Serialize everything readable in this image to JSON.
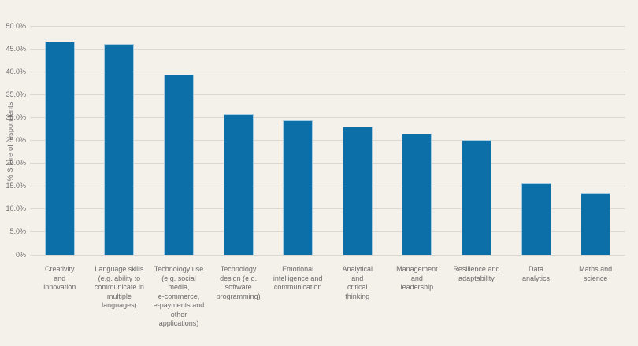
{
  "page": {
    "background_color": "#f4f1ea",
    "text_color": "#6e6e6e"
  },
  "chart_data": {
    "type": "bar",
    "title": "",
    "xlabel": "",
    "ylabel": "% Share of respondents",
    "categories": [
      "Creativity and innovation",
      "Language skills (e.g. ability to communicate in multiple languages)",
      "Technology use (e.g. social media, e-commerce, e-payments and other applications)",
      "Technology design (e.g. software programming)",
      "Emotional intelligence and communication",
      "Analytical and critical thinking",
      "Management and leadership",
      "Resilience and adaptability",
      "Data analytics",
      "Maths and science"
    ],
    "category_display": [
      "Creativity\nand\ninnovation",
      "Language skills\n(e.g. ability to\ncommunicate in\nmultiple\nlanguages)",
      "Technology use\n(e.g. social\nmedia,\ne-commerce,\ne-payments and\nother\napplications)",
      "Technology\ndesign (e.g.\nsoftware\nprogramming)",
      "Emotional\nintelligence and\ncommunication",
      "Analytical\nand\ncritical\nthinking",
      "Management\nand\nleadership",
      "Resilience and\nadaptability",
      "Data\nanalytics",
      "Maths and\nscience"
    ],
    "values": [
      46.6,
      46.0,
      39.4,
      30.8,
      29.4,
      28.0,
      26.5,
      25.1,
      15.6,
      13.4
    ],
    "ylim": [
      0,
      50
    ],
    "y_tick_step": 5,
    "y_tick_labels": [
      "0%",
      "5.0%",
      "10.0%",
      "15.0%",
      "20.0%",
      "25.0%",
      "30.0%",
      "35.0%",
      "40.0%",
      "45.0%",
      "50.0%"
    ],
    "grid": "horizontal",
    "legend": "none",
    "bar_color": "#0d6fa8",
    "gridline_color": "#dcd8d1"
  }
}
